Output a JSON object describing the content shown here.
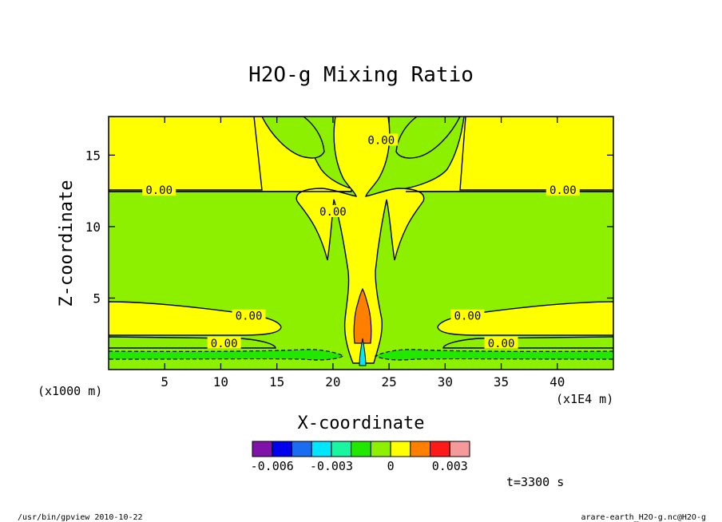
{
  "chart_data": {
    "type": "contour",
    "title": "H2O-g Mixing Ratio",
    "xlabel": "X-coordinate",
    "ylabel": "Z-coordinate",
    "x_unit_left": "(x1000 m)",
    "x_unit_right": "(x1E4 m)",
    "xlim": [
      0,
      45
    ],
    "ylim": [
      0,
      17.7
    ],
    "x_ticks": [
      5,
      10,
      15,
      20,
      25,
      30,
      35,
      40
    ],
    "y_ticks": [
      5,
      10,
      15
    ],
    "contour_labels": [
      {
        "x": 4.5,
        "y": 12.5,
        "text": "0.00"
      },
      {
        "x": 40.5,
        "y": 12.5,
        "text": "0.00"
      },
      {
        "x": 12.5,
        "y": 3.7,
        "text": "0.00"
      },
      {
        "x": 32.0,
        "y": 3.7,
        "text": "0.00"
      },
      {
        "x": 10.3,
        "y": 1.8,
        "text": "0.00"
      },
      {
        "x": 35.0,
        "y": 1.8,
        "text": "0.00"
      },
      {
        "x": 24.3,
        "y": 16.0,
        "text": "0.00"
      },
      {
        "x": 20.0,
        "y": 11.0,
        "text": "0.00"
      }
    ],
    "colorbar": {
      "colors": [
        "#7f12a8",
        "#0000ee",
        "#1a6cf0",
        "#00e6ff",
        "#19f5a0",
        "#22e800",
        "#8cf000",
        "#ffff00",
        "#ff8000",
        "#ff1a1a",
        "#f59a9a"
      ],
      "tick_labels": [
        "-0.006",
        "-0.003",
        "0",
        "0.003"
      ]
    },
    "time_label": "t=3300 s"
  },
  "footer": {
    "left": "/usr/bin/gpview  2010-10-22",
    "right": "arare-earth_H2O-g.nc@H2O-g"
  }
}
